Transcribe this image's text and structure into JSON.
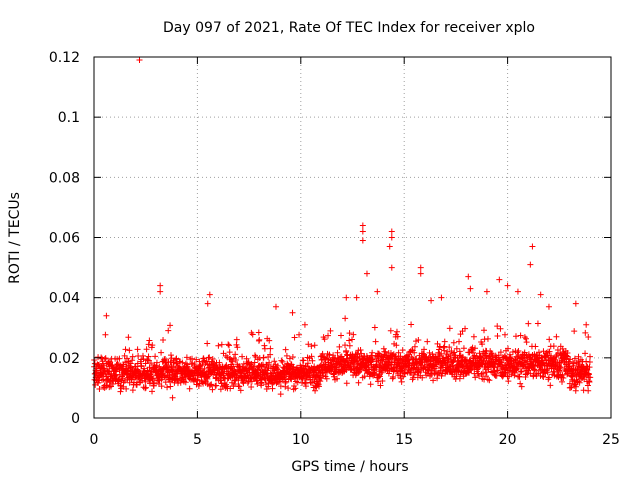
{
  "chart_data": {
    "type": "scatter",
    "title": "Day 097 of 2021, Rate Of TEC Index for receiver xplo",
    "xlabel": "GPS time / hours",
    "ylabel": "ROTI / TECUs",
    "xlim": [
      0,
      25
    ],
    "ylim": [
      0,
      0.12
    ],
    "x_ticks": [
      "0",
      "5",
      "10",
      "15",
      "20",
      "25"
    ],
    "y_ticks": [
      "0",
      "0.02",
      "0.04",
      "0.06",
      "0.08",
      "0.1",
      "0.12"
    ],
    "x_tick_values": [
      0,
      5,
      10,
      15,
      20,
      25
    ],
    "y_tick_values": [
      0,
      0.02,
      0.04,
      0.06,
      0.08,
      0.1,
      0.12
    ],
    "grid": true,
    "marker": "+",
    "series": [
      {
        "name": "ROTI",
        "color": "#ff0000",
        "baseline_band": [
          0.008,
          0.022
        ],
        "notable_points": [
          {
            "x": 2.2,
            "y": 0.119
          },
          {
            "x": 0.6,
            "y": 0.034
          },
          {
            "x": 3.2,
            "y": 0.044
          },
          {
            "x": 3.2,
            "y": 0.042
          },
          {
            "x": 5.6,
            "y": 0.041
          },
          {
            "x": 5.5,
            "y": 0.038
          },
          {
            "x": 8.8,
            "y": 0.037
          },
          {
            "x": 9.6,
            "y": 0.035
          },
          {
            "x": 10.2,
            "y": 0.031
          },
          {
            "x": 12.2,
            "y": 0.04
          },
          {
            "x": 12.7,
            "y": 0.04
          },
          {
            "x": 13.0,
            "y": 0.064
          },
          {
            "x": 13.0,
            "y": 0.062
          },
          {
            "x": 13.0,
            "y": 0.059
          },
          {
            "x": 13.2,
            "y": 0.048
          },
          {
            "x": 13.7,
            "y": 0.042
          },
          {
            "x": 14.4,
            "y": 0.062
          },
          {
            "x": 14.4,
            "y": 0.06
          },
          {
            "x": 14.3,
            "y": 0.057
          },
          {
            "x": 14.4,
            "y": 0.05
          },
          {
            "x": 15.8,
            "y": 0.05
          },
          {
            "x": 15.8,
            "y": 0.048
          },
          {
            "x": 16.3,
            "y": 0.039
          },
          {
            "x": 16.8,
            "y": 0.04
          },
          {
            "x": 18.1,
            "y": 0.047
          },
          {
            "x": 18.2,
            "y": 0.043
          },
          {
            "x": 19.0,
            "y": 0.042
          },
          {
            "x": 19.6,
            "y": 0.046
          },
          {
            "x": 20.0,
            "y": 0.044
          },
          {
            "x": 20.5,
            "y": 0.042
          },
          {
            "x": 21.2,
            "y": 0.057
          },
          {
            "x": 21.1,
            "y": 0.051
          },
          {
            "x": 21.6,
            "y": 0.041
          },
          {
            "x": 22.0,
            "y": 0.037
          },
          {
            "x": 23.3,
            "y": 0.038
          },
          {
            "x": 23.8,
            "y": 0.031
          }
        ]
      }
    ]
  }
}
